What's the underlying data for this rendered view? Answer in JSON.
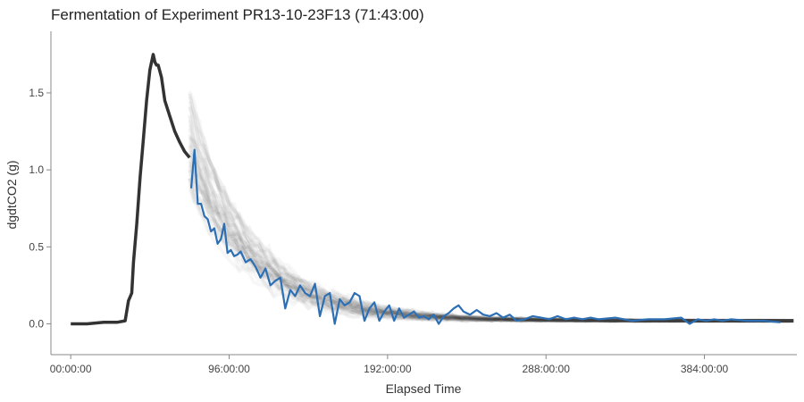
{
  "chart_data": {
    "type": "line",
    "title": "Fermentation of Experiment PR13-10-23F13 (71:43:00)",
    "xlabel": "Elapsed Time",
    "ylabel": "dgdtCO2 (g)",
    "x_unit": "hours",
    "xlim": [
      -12,
      440
    ],
    "ylim": [
      -0.2,
      1.9
    ],
    "x_ticks": [
      {
        "value": 0,
        "label": "00:00:00"
      },
      {
        "value": 96,
        "label": "96:00:00"
      },
      {
        "value": 192,
        "label": "192:00:00"
      },
      {
        "value": 288,
        "label": "288:00:00"
      },
      {
        "value": 384,
        "label": "384:00:00"
      }
    ],
    "y_ticks": [
      {
        "value": 0.0,
        "label": "0.0"
      },
      {
        "value": 0.5,
        "label": "0.5"
      },
      {
        "value": 1.0,
        "label": "1.0"
      },
      {
        "value": 1.5,
        "label": "1.5"
      }
    ],
    "grid": false,
    "series": [
      {
        "role": "observed",
        "color": "#333333",
        "x": [
          0,
          10,
          20,
          28,
          33,
          35,
          37,
          38,
          40,
          42,
          44,
          46,
          48,
          50,
          51,
          52,
          53,
          55,
          57,
          60,
          63,
          66,
          69,
          72
        ],
        "y": [
          0.0,
          0.0,
          0.01,
          0.01,
          0.02,
          0.15,
          0.2,
          0.4,
          0.65,
          0.95,
          1.2,
          1.45,
          1.65,
          1.75,
          1.7,
          1.68,
          1.68,
          1.6,
          1.45,
          1.35,
          1.25,
          1.18,
          1.12,
          1.08
        ]
      },
      {
        "role": "forecast",
        "color": "#2c6fb5",
        "x": [
          73,
          75,
          77,
          79,
          81,
          83,
          85,
          87,
          89,
          91,
          93,
          95,
          97,
          99,
          101,
          103,
          106,
          109,
          112,
          115,
          118,
          121,
          124,
          127,
          130,
          133,
          136,
          139,
          142,
          145,
          148,
          151,
          154,
          157,
          160,
          163,
          166,
          169,
          172,
          175,
          178,
          181,
          184,
          187,
          190,
          193,
          196,
          199,
          202,
          205,
          208,
          211,
          214,
          217,
          220,
          223,
          226,
          229,
          232,
          235,
          238,
          242,
          246,
          250,
          254,
          258,
          262,
          266,
          270,
          275,
          280,
          285,
          290,
          295,
          300,
          305,
          310,
          315,
          320,
          330,
          340,
          350,
          360,
          370,
          375,
          380,
          385,
          390,
          395,
          400,
          410,
          420,
          430
        ],
        "y": [
          0.88,
          1.13,
          0.78,
          0.78,
          0.7,
          0.68,
          0.6,
          0.62,
          0.52,
          0.55,
          0.65,
          0.46,
          0.48,
          0.44,
          0.45,
          0.47,
          0.4,
          0.42,
          0.37,
          0.3,
          0.36,
          0.25,
          0.28,
          0.3,
          0.1,
          0.22,
          0.18,
          0.25,
          0.2,
          0.18,
          0.26,
          0.05,
          0.18,
          0.2,
          0.0,
          0.16,
          0.12,
          0.14,
          0.2,
          0.18,
          0.02,
          0.1,
          0.14,
          0.02,
          0.08,
          0.12,
          0.02,
          0.1,
          0.04,
          0.06,
          0.08,
          0.04,
          0.05,
          0.03,
          0.06,
          0.0,
          0.05,
          0.07,
          0.1,
          0.12,
          0.08,
          0.06,
          0.09,
          0.06,
          0.05,
          0.07,
          0.04,
          0.06,
          0.02,
          0.03,
          0.05,
          0.04,
          0.03,
          0.05,
          0.03,
          0.04,
          0.03,
          0.04,
          0.03,
          0.04,
          0.02,
          0.03,
          0.03,
          0.04,
          0.0,
          0.03,
          0.02,
          0.03,
          0.02,
          0.03,
          0.02,
          0.02,
          0.01
        ]
      }
    ],
    "ensemble": {
      "color": "#000000",
      "opacity": 0.03,
      "members": 40,
      "x_start": 72,
      "x_end": 440,
      "amplitude": 1.1,
      "decay_hours": 40
    }
  }
}
